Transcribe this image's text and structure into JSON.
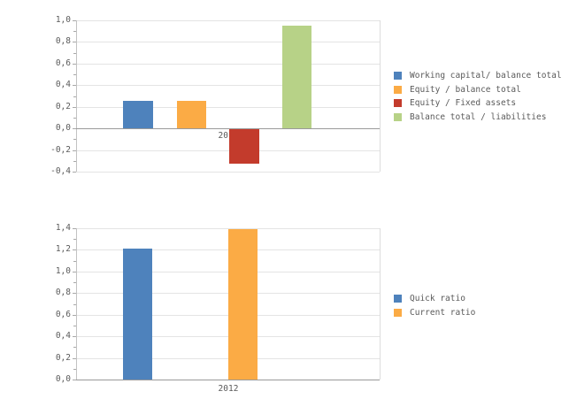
{
  "page": {
    "background": "#ffffff",
    "text_color": "#5a5a5a"
  },
  "palette": {
    "gridline": "#e4e4e4",
    "zero_axis": "#9a9a9a",
    "value_axis": "#c2c2c2",
    "tick": "#a8a8a8",
    "plot_border": "#dcdcdc"
  },
  "chart_data": [
    {
      "type": "bar",
      "title": "",
      "categories": [
        "2012"
      ],
      "series": [
        {
          "name": "Working capital/ balance total",
          "values": [
            0.25
          ],
          "color": "#4e82bc"
        },
        {
          "name": "Equity / balance total",
          "values": [
            0.25
          ],
          "color": "#fbab45"
        },
        {
          "name": "Equity / Fixed assets",
          "values": [
            -0.32
          ],
          "color": "#c33b2c"
        },
        {
          "name": "Balance total / liabilities",
          "values": [
            0.95
          ],
          "color": "#b7d287"
        }
      ],
      "xlabel": "",
      "ylabel": "",
      "ylim": [
        -0.4,
        1.0
      ],
      "y_tick_step": 0.2,
      "y_tick_labels": [
        "1,0",
        "0,8",
        "0,6",
        "0,4",
        "0,2",
        "0,0",
        "-0,2",
        "-0,4"
      ],
      "grid": true,
      "legend_position": "right"
    },
    {
      "type": "bar",
      "title": "",
      "categories": [
        "2012"
      ],
      "series": [
        {
          "name": "Quick ratio",
          "values": [
            1.21
          ],
          "color": "#4e82bc"
        },
        {
          "name": "Current ratio",
          "values": [
            1.39
          ],
          "color": "#fbab45"
        }
      ],
      "xlabel": "",
      "ylabel": "",
      "ylim": [
        0.0,
        1.4
      ],
      "y_tick_step": 0.2,
      "y_tick_labels": [
        "1,4",
        "1,2",
        "1,0",
        "0,8",
        "0,6",
        "0,4",
        "0,2",
        "0,0"
      ],
      "grid": true,
      "legend_position": "right"
    }
  ]
}
